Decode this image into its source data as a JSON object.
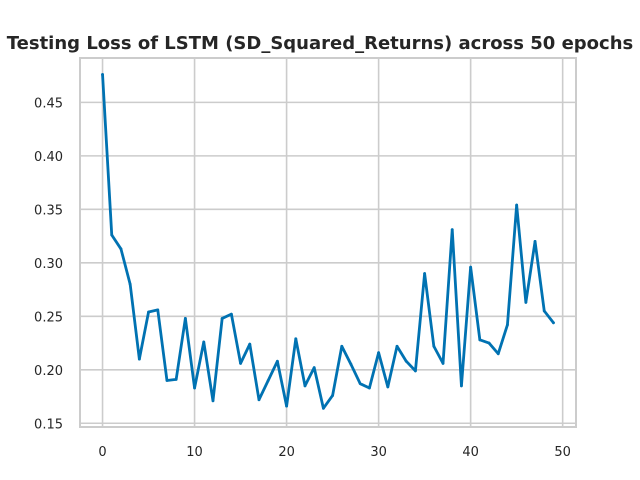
{
  "chart_data": {
    "type": "line",
    "title": "Testing Loss of LSTM (SD_Squared_Returns) across 50 epochs",
    "xlabel": "",
    "ylabel": "",
    "xlim": [
      -2.45,
      51.45
    ],
    "ylim": [
      0.1465,
      0.4915
    ],
    "xticks": [
      0,
      10,
      20,
      30,
      40,
      50
    ],
    "yticks": [
      0.15,
      0.2,
      0.25,
      0.3,
      0.35,
      0.4,
      0.45
    ],
    "xtick_labels": [
      "0",
      "10",
      "20",
      "30",
      "40",
      "50"
    ],
    "ytick_labels": [
      "0.15",
      "0.20",
      "0.25",
      "0.30",
      "0.35",
      "0.40",
      "0.45"
    ],
    "grid": true,
    "series": [
      {
        "color": "#0072b2",
        "x": [
          0,
          1,
          2,
          3,
          4,
          5,
          6,
          7,
          8,
          9,
          10,
          11,
          12,
          13,
          14,
          15,
          16,
          17,
          18,
          19,
          20,
          21,
          22,
          23,
          24,
          25,
          26,
          27,
          28,
          29,
          30,
          31,
          32,
          33,
          34,
          35,
          36,
          37,
          38,
          39,
          40,
          41,
          42,
          43,
          44,
          45,
          46,
          47,
          48,
          49
        ],
        "values": [
          0.476,
          0.326,
          0.313,
          0.28,
          0.21,
          0.254,
          0.256,
          0.19,
          0.191,
          0.248,
          0.183,
          0.226,
          0.171,
          0.248,
          0.252,
          0.206,
          0.224,
          0.172,
          0.19,
          0.208,
          0.166,
          0.229,
          0.185,
          0.202,
          0.164,
          0.176,
          0.222,
          0.205,
          0.187,
          0.183,
          0.216,
          0.184,
          0.222,
          0.208,
          0.199,
          0.29,
          0.222,
          0.206,
          0.331,
          0.185,
          0.296,
          0.228,
          0.225,
          0.215,
          0.242,
          0.354,
          0.263,
          0.32,
          0.255,
          0.244
        ]
      }
    ]
  }
}
